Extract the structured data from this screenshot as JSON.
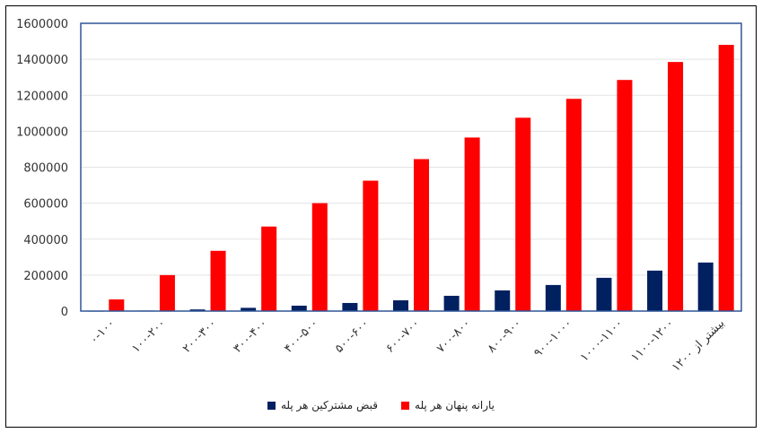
{
  "chart_data": {
    "type": "bar",
    "categories": [
      "۰-۱۰۰",
      "۱۰۰-۲۰۰",
      "۲۰۰-۳۰۰",
      "۳۰۰-۴۰۰",
      "۴۰۰-۵۰۰",
      "۵۰۰-۶۰۰",
      "۶۰۰-۷۰۰",
      "۷۰۰-۸۰۰",
      "۸۰۰-۹۰۰",
      "۹۰۰-۱۰۰۰",
      "۱۰۰۰-۱۱۰۰",
      "۱۱۰۰-۱۲۰۰",
      "بیشتر از ۱۲۰۰"
    ],
    "series": [
      {
        "name": "قبض مشترکین هر پله",
        "color": "#002060",
        "values": [
          1000,
          3000,
          9000,
          18000,
          30000,
          45000,
          60000,
          85000,
          115000,
          145000,
          185000,
          225000,
          270000
        ]
      },
      {
        "name": "یارانه پنهان هر پله",
        "color": "#ff0000",
        "values": [
          65000,
          200000,
          335000,
          470000,
          600000,
          725000,
          845000,
          965000,
          1075000,
          1180000,
          1285000,
          1385000,
          1480000
        ]
      }
    ],
    "yticks": [
      "0",
      "200000",
      "400000",
      "600000",
      "800000",
      "1000000",
      "1200000",
      "1400000",
      "1600000"
    ],
    "ylim": [
      0,
      1600000
    ],
    "grid": true,
    "legend_position": "bottom"
  }
}
